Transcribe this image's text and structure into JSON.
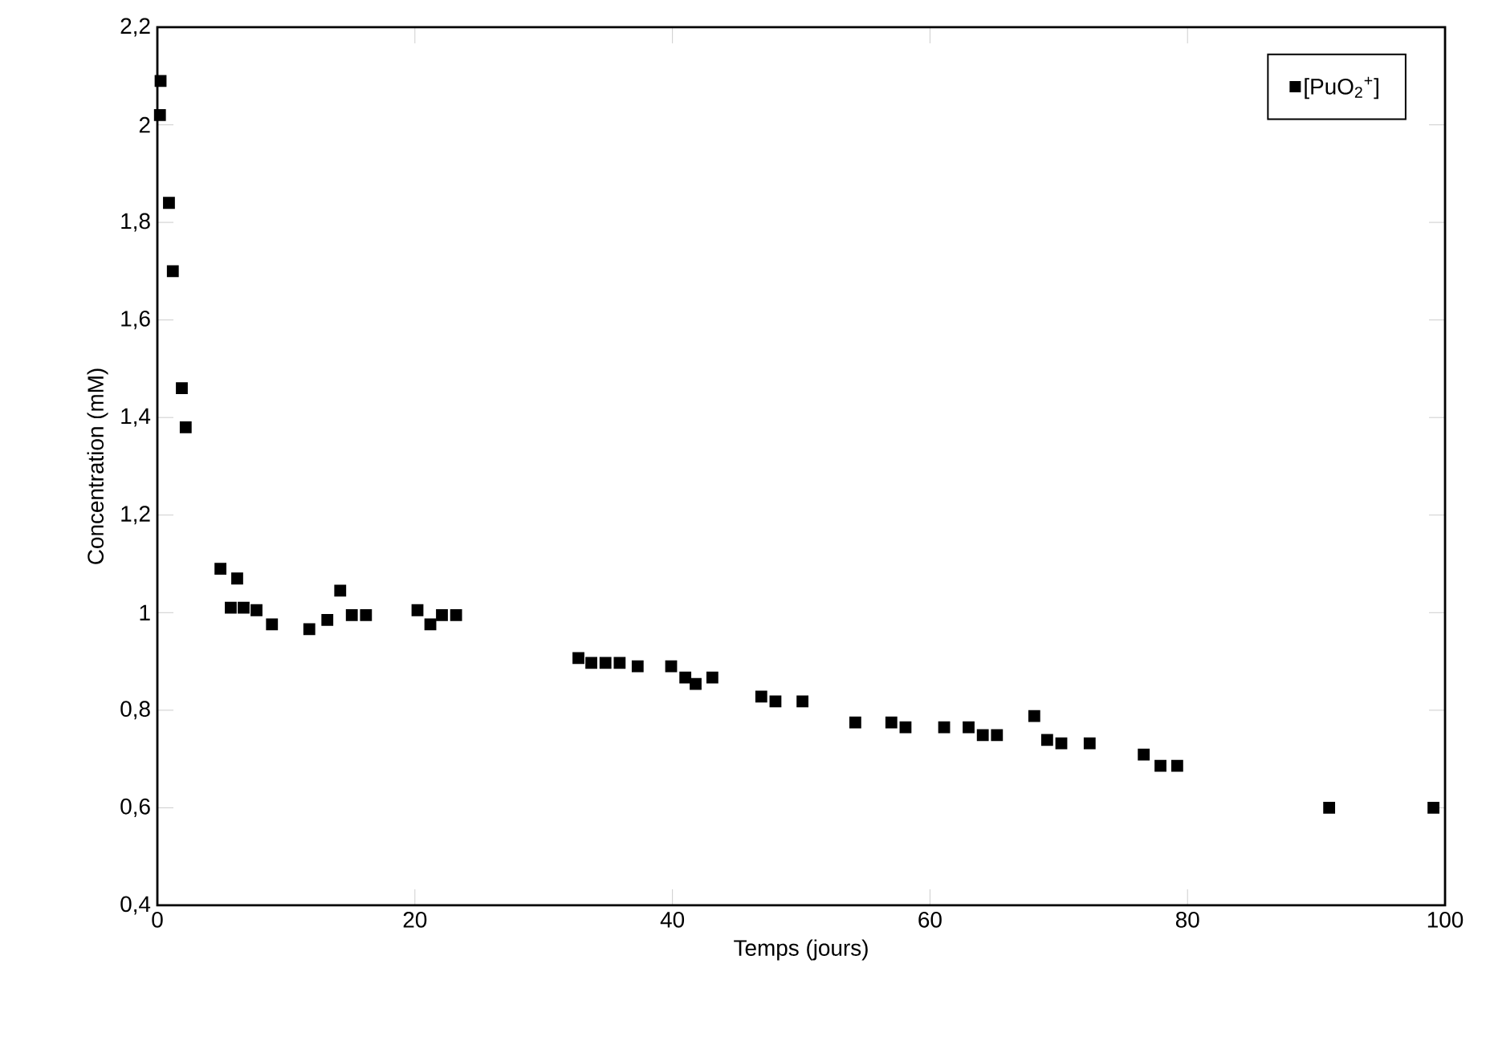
{
  "chart_data": {
    "type": "scatter",
    "xlabel": "Temps (jours)",
    "ylabel": "Concentration (mM)",
    "x": [
      0.25,
      0.2,
      0.9,
      1.2,
      1.9,
      2.2,
      4.9,
      6.2,
      5.7,
      6.7,
      7.7,
      8.9,
      11.8,
      13.2,
      14.2,
      15.1,
      16.2,
      20.2,
      21.2,
      22.1,
      23.2,
      32.7,
      33.7,
      34.8,
      35.9,
      37.3,
      39.9,
      41.0,
      41.8,
      43.1,
      46.9,
      48.0,
      50.1,
      54.2,
      57.0,
      58.1,
      61.1,
      63.0,
      64.1,
      65.2,
      68.1,
      69.1,
      70.2,
      72.4,
      76.6,
      77.9,
      79.2,
      91.0,
      99.1
    ],
    "series": [
      {
        "name": "[PuO$_{2}$$^{+}$]",
        "color": "#000000",
        "values": [
          2.09,
          2.02,
          1.84,
          1.7,
          1.46,
          1.38,
          1.09,
          1.07,
          1.01,
          1.01,
          1.005,
          0.976,
          0.966,
          0.985,
          1.045,
          0.995,
          0.995,
          1.005,
          0.976,
          0.995,
          0.995,
          0.907,
          0.897,
          0.897,
          0.897,
          0.89,
          0.89,
          0.867,
          0.854,
          0.867,
          0.828,
          0.818,
          0.818,
          0.775,
          0.775,
          0.765,
          0.765,
          0.765,
          0.749,
          0.749,
          0.788,
          0.739,
          0.732,
          0.732,
          0.709,
          0.686,
          0.686,
          0.6,
          0.6
        ]
      }
    ],
    "xlim": [
      0,
      100
    ],
    "ylim": [
      0.4,
      2.2
    ],
    "xticks": [
      0,
      20,
      40,
      60,
      80,
      100
    ],
    "yticks": [
      {
        "value": 0.4,
        "label": "0,4"
      },
      {
        "value": 0.6,
        "label": "0,6"
      },
      {
        "value": 0.8,
        "label": "0,8"
      },
      {
        "value": 1,
        "label": "1"
      },
      {
        "value": 1.2,
        "label": "1,2"
      },
      {
        "value": 1.4,
        "label": "1,4"
      },
      {
        "value": 1.6,
        "label": "1,6"
      },
      {
        "value": 1.8,
        "label": "1,8"
      },
      {
        "value": 2,
        "label": "2"
      },
      {
        "value": 2.2,
        "label": "2,2"
      }
    ],
    "marker": "square",
    "legend": "top right",
    "grid": false
  }
}
